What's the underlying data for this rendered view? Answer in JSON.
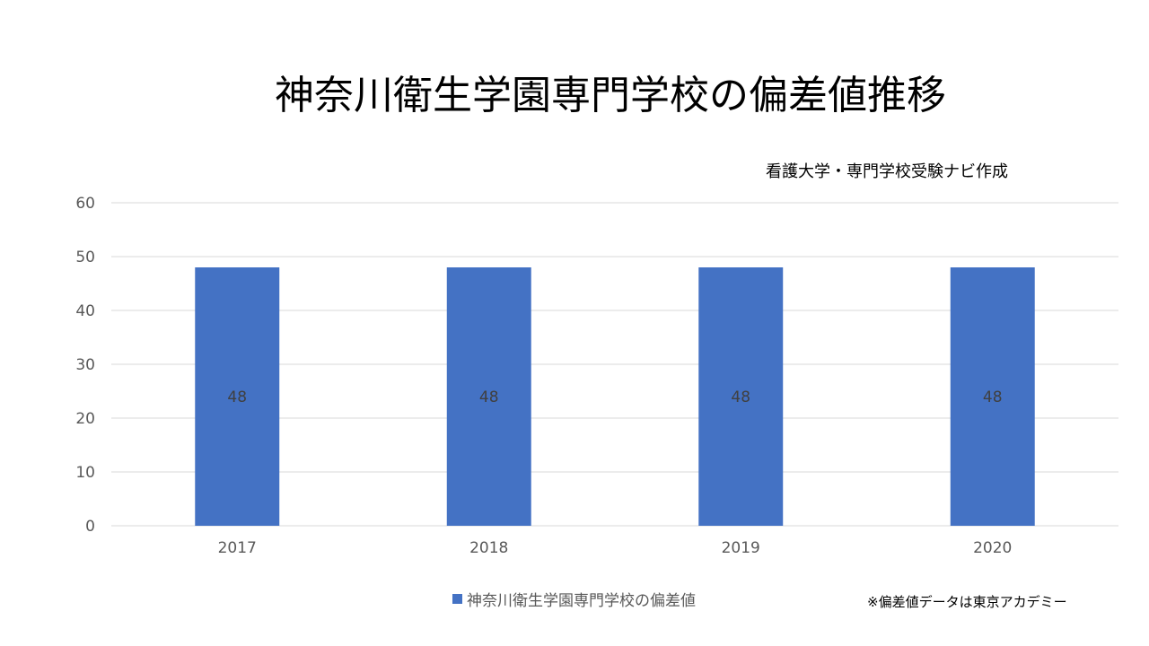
{
  "chart_data": {
    "type": "bar",
    "title": "神奈川衛生学園専門学校の偏差値推移",
    "subtitle": "看護大学・専門学校受験ナビ作成",
    "categories": [
      "2017",
      "2018",
      "2019",
      "2020"
    ],
    "series": [
      {
        "name": "神奈川衛生学園専門学校の偏差値",
        "values": [
          48,
          48,
          48,
          48
        ],
        "color": "#4472c4"
      }
    ],
    "ylim": [
      0,
      60
    ],
    "yticks": [
      0,
      10,
      20,
      30,
      40,
      50,
      60
    ],
    "grid": true,
    "data_labels": true,
    "legend": "bottom",
    "note": "※偏差値データは東京アカデミー"
  }
}
